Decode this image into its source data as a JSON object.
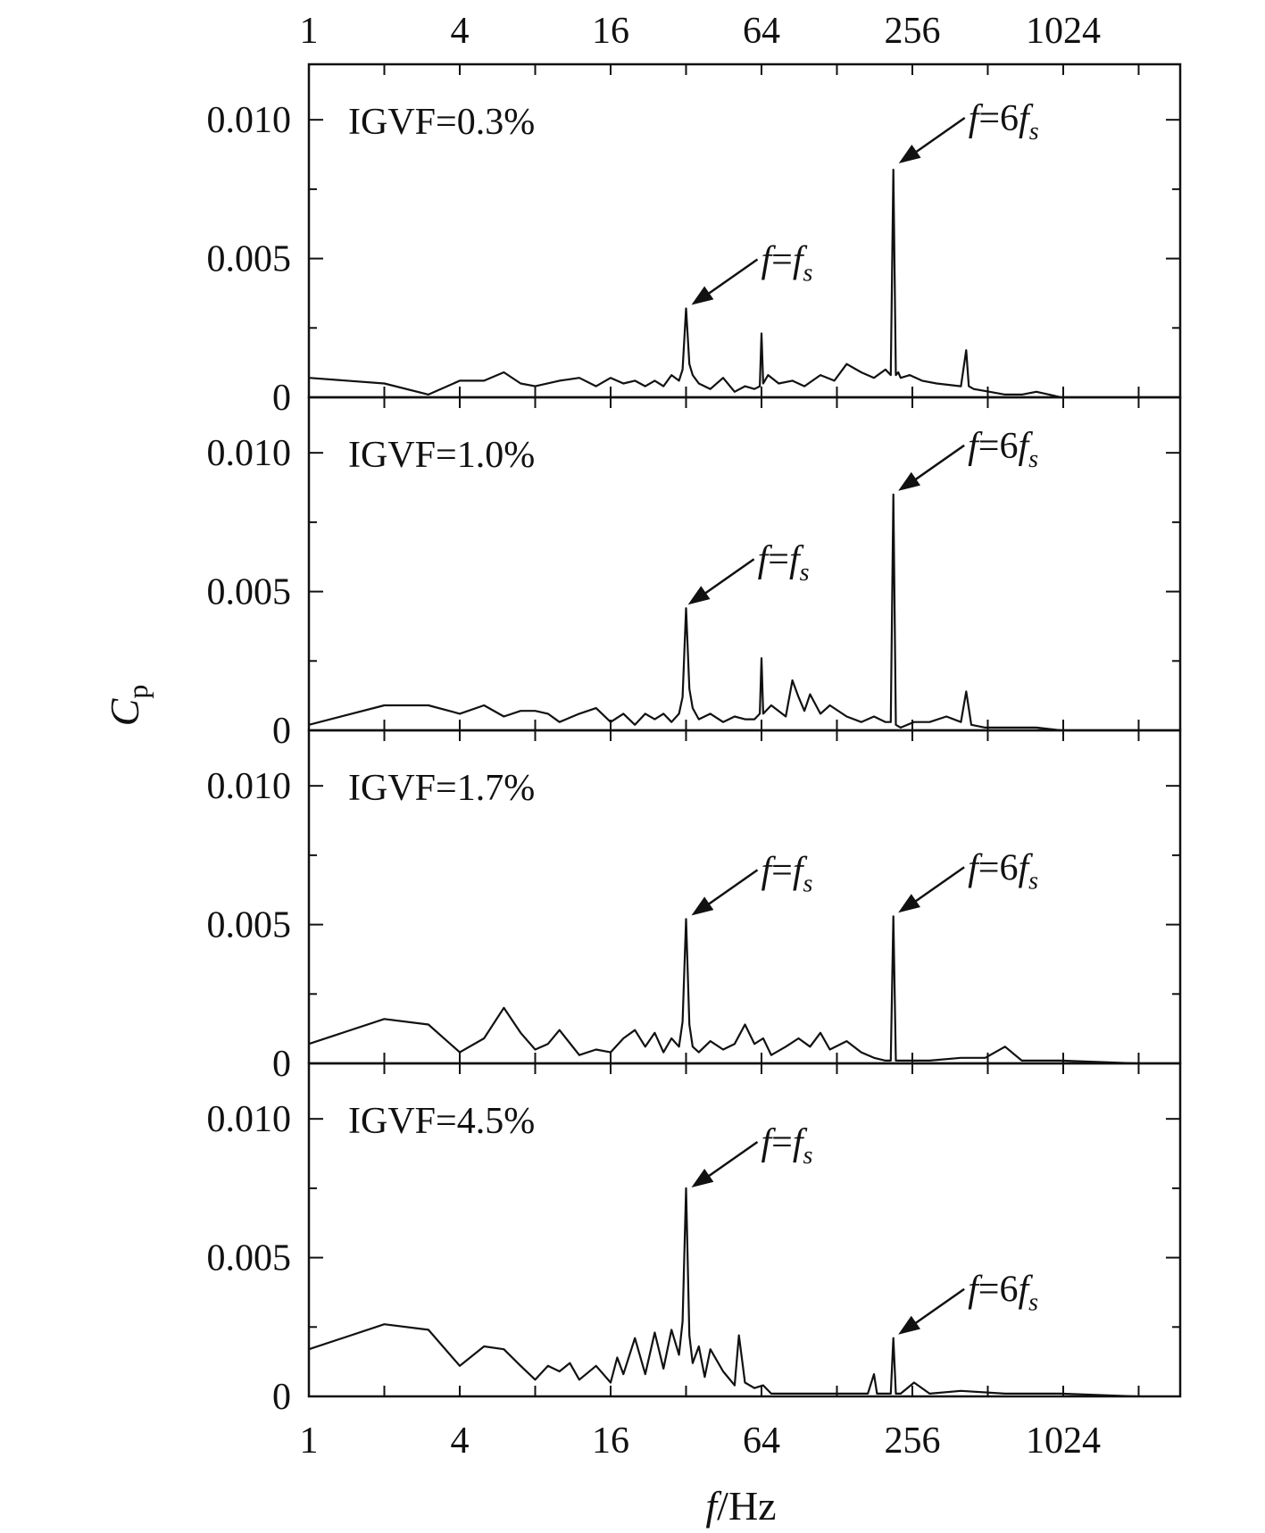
{
  "chart_data": {
    "type": "line",
    "x_scale": "log2",
    "xlim": [
      1,
      3000
    ],
    "x_ticks": [
      "1",
      "4",
      "16",
      "64",
      "256",
      "1024"
    ],
    "x_tick_values": [
      1,
      4,
      16,
      64,
      256,
      1024
    ],
    "xlabel_italic": "f",
    "xlabel_rest": "/Hz",
    "ylabel_main": "C",
    "ylabel_sub": "p",
    "ylim": [
      0,
      0.012
    ],
    "y_ticks": [
      "0",
      "0.005",
      "0.010"
    ],
    "y_tick_values": [
      0,
      0.005,
      0.01
    ],
    "grid": false,
    "panels": [
      {
        "label": "IGVF=0.3%",
        "series": [
          {
            "x": [
              1,
              2,
              3,
              4,
              5,
              6,
              7,
              8,
              10,
              12,
              14,
              16,
              18,
              20,
              22,
              24,
              26,
              28,
              30,
              31,
              32,
              33,
              34,
              36,
              40,
              45,
              50,
              55,
              60,
              63,
              64,
              65,
              68,
              75,
              85,
              95,
              110,
              125,
              140,
              160,
              180,
              200,
              210,
              215,
              220,
              225,
              230,
              250,
              280,
              320,
              400,
              420,
              430,
              450,
              520,
              600,
              700,
              800,
              900,
              1000
            ],
            "y": [
              0.0007,
              0.0005,
              0.0001,
              0.0006,
              0.0006,
              0.0009,
              0.0005,
              0.0004,
              0.0006,
              0.0007,
              0.0004,
              0.0007,
              0.0005,
              0.0006,
              0.0004,
              0.0006,
              0.0004,
              0.0008,
              0.0006,
              0.001,
              0.0032,
              0.0012,
              0.0008,
              0.0005,
              0.0003,
              0.0007,
              0.0002,
              0.0004,
              0.0003,
              0.0004,
              0.0023,
              0.0005,
              0.0008,
              0.0005,
              0.0006,
              0.0004,
              0.0008,
              0.0006,
              0.0012,
              0.0009,
              0.0007,
              0.001,
              0.0008,
              0.0082,
              0.0008,
              0.0009,
              0.0007,
              0.0008,
              0.0006,
              0.0005,
              0.0004,
              0.0017,
              0.0004,
              0.0003,
              0.0002,
              0.0001,
              0.0001,
              0.0002,
              0.0001,
              0
            ]
          }
        ],
        "annotations": [
          {
            "base": "f",
            "eq": "=",
            "rhs_coef": "",
            "rhs_italic": "f",
            "sub": "s",
            "target_x": 32,
            "target_y": 0.0032
          },
          {
            "base": "f",
            "eq": "=",
            "rhs_coef": "6",
            "rhs_italic": "f",
            "sub": "s",
            "target_x": 215,
            "target_y": 0.0083
          }
        ]
      },
      {
        "label": "IGVF=1.0%",
        "series": [
          {
            "x": [
              1,
              2,
              3,
              4,
              5,
              6,
              7,
              8,
              9,
              10,
              12,
              14,
              16,
              18,
              20,
              22,
              24,
              26,
              28,
              30,
              31,
              32,
              33,
              34,
              36,
              40,
              45,
              50,
              55,
              60,
              63,
              64,
              65,
              70,
              80,
              85,
              90,
              95,
              100,
              110,
              120,
              140,
              160,
              180,
              200,
              210,
              215,
              220,
              230,
              260,
              300,
              350,
              400,
              420,
              440,
              500,
              600,
              800,
              1000
            ],
            "y": [
              0.0002,
              0.0009,
              0.0009,
              0.0006,
              0.0009,
              0.0005,
              0.0007,
              0.0007,
              0.0006,
              0.0003,
              0.0006,
              0.0008,
              0.0003,
              0.0006,
              0.0002,
              0.0006,
              0.0004,
              0.0006,
              0.0003,
              0.0006,
              0.0012,
              0.0044,
              0.0015,
              0.0008,
              0.0004,
              0.0006,
              0.0003,
              0.0005,
              0.0004,
              0.0004,
              0.0006,
              0.0026,
              0.0006,
              0.0009,
              0.0005,
              0.0018,
              0.0012,
              0.0007,
              0.0013,
              0.0006,
              0.0009,
              0.0005,
              0.0003,
              0.0005,
              0.0003,
              0.0003,
              0.0085,
              0.0002,
              0.0001,
              0.0003,
              0.0003,
              0.0005,
              0.0003,
              0.0014,
              0.0002,
              0.0001,
              0.0001,
              0.0001,
              0
            ]
          }
        ],
        "annotations": [
          {
            "base": "f",
            "eq": "=",
            "rhs_coef": "",
            "rhs_italic": "f",
            "sub": "s",
            "target_x": 31,
            "target_y": 0.0044
          },
          {
            "base": "f",
            "eq": "=",
            "rhs_coef": "6",
            "rhs_italic": "f",
            "sub": "s",
            "target_x": 214,
            "target_y": 0.0085
          }
        ]
      },
      {
        "label": "IGVF=1.7%",
        "series": [
          {
            "x": [
              1,
              2,
              3,
              4,
              5,
              6,
              7,
              8,
              9,
              10,
              12,
              14,
              16,
              18,
              20,
              22,
              24,
              26,
              28,
              30,
              31,
              32,
              33,
              34,
              36,
              40,
              45,
              50,
              55,
              60,
              65,
              70,
              80,
              90,
              100,
              110,
              120,
              140,
              160,
              180,
              200,
              210,
              215,
              220,
              230,
              260,
              300,
              400,
              500,
              600,
              700,
              800,
              1000,
              2000
            ],
            "y": [
              0.0007,
              0.0016,
              0.0014,
              0.0004,
              0.0009,
              0.002,
              0.0011,
              0.0005,
              0.0007,
              0.0012,
              0.0003,
              0.0005,
              0.0004,
              0.0009,
              0.0012,
              0.0006,
              0.0011,
              0.0004,
              0.0009,
              0.0006,
              0.0015,
              0.0052,
              0.0014,
              0.0006,
              0.0004,
              0.0008,
              0.0005,
              0.0007,
              0.0014,
              0.0007,
              0.0009,
              0.0003,
              0.0006,
              0.0009,
              0.0006,
              0.0011,
              0.0005,
              0.0008,
              0.0004,
              0.0002,
              0.0001,
              0.0001,
              0.0053,
              0.0001,
              0.0001,
              0.0001,
              0.0001,
              0.0002,
              0.0002,
              0.0006,
              0.0001,
              0.0001,
              0.0001,
              0
            ]
          }
        ],
        "annotations": [
          {
            "base": "f",
            "eq": "=",
            "rhs_coef": "",
            "rhs_italic": "f",
            "sub": "s",
            "target_x": 32,
            "target_y": 0.0052
          },
          {
            "base": "f",
            "eq": "=",
            "rhs_coef": "6",
            "rhs_italic": "f",
            "sub": "s",
            "target_x": 214,
            "target_y": 0.0053
          }
        ]
      },
      {
        "label": "IGVF=4.5%",
        "series": [
          {
            "x": [
              1,
              2,
              3,
              4,
              5,
              6,
              7,
              8,
              9,
              10,
              11,
              12,
              14,
              16,
              17,
              18,
              20,
              22,
              24,
              26,
              28,
              30,
              31,
              32,
              33,
              34,
              36,
              38,
              40,
              45,
              50,
              52,
              55,
              60,
              65,
              70,
              80,
              90,
              100,
              110,
              130,
              150,
              170,
              180,
              185,
              190,
              200,
              210,
              215,
              220,
              230,
              260,
              300,
              400,
              600,
              800,
              1000,
              2000
            ],
            "y": [
              0.0017,
              0.0026,
              0.0024,
              0.0011,
              0.0018,
              0.0017,
              0.0011,
              0.0006,
              0.0011,
              0.0009,
              0.0012,
              0.0006,
              0.0011,
              0.0005,
              0.0014,
              0.0008,
              0.0021,
              0.0008,
              0.0023,
              0.001,
              0.0024,
              0.0015,
              0.0027,
              0.0075,
              0.0022,
              0.0012,
              0.0018,
              0.0007,
              0.0017,
              0.0009,
              0.0004,
              0.0022,
              0.0005,
              0.0003,
              0.0004,
              0.0001,
              0.0001,
              0.0001,
              0.0001,
              0.0001,
              0.0001,
              0.0001,
              0.0001,
              0.0008,
              0.0001,
              0.0001,
              0.0001,
              0.0001,
              0.0021,
              0.0001,
              0.0001,
              0.0005,
              0.0001,
              0.0002,
              0.0001,
              0.0001,
              0.0001,
              0
            ]
          }
        ],
        "annotations": [
          {
            "base": "f",
            "eq": "=",
            "rhs_coef": "",
            "rhs_italic": "f",
            "sub": "s",
            "target_x": 32,
            "target_y": 0.0074
          },
          {
            "base": "f",
            "eq": "=",
            "rhs_coef": "6",
            "rhs_italic": "f",
            "sub": "s",
            "target_x": 214,
            "target_y": 0.0021
          }
        ]
      }
    ]
  }
}
